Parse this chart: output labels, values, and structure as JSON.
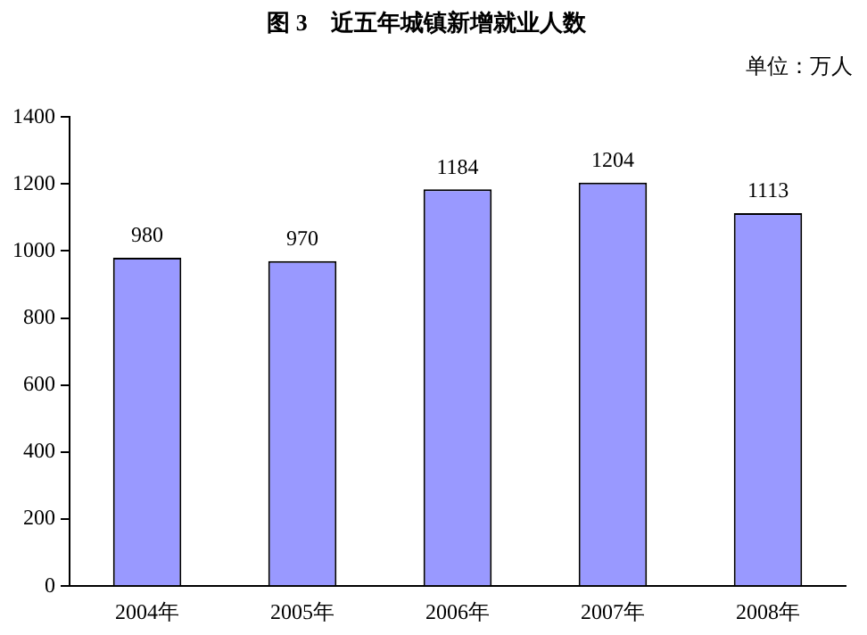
{
  "chart_data": {
    "type": "bar",
    "title": "图 3　近五年城镇新增就业人数",
    "annotations": [
      "单位：万人"
    ],
    "categories": [
      "2004年",
      "2005年",
      "2006年",
      "2007年",
      "2008年"
    ],
    "values": [
      980,
      970,
      1184,
      1204,
      1113
    ],
    "color": "#9999ff",
    "ylim": [
      0,
      1400
    ],
    "yticks": [
      0,
      200,
      400,
      600,
      800,
      1000,
      1200,
      1400
    ],
    "grid": false,
    "legend": false,
    "data_labels": true
  }
}
